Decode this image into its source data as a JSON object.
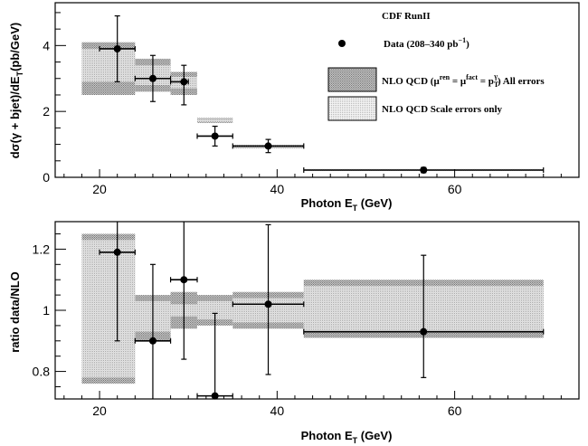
{
  "chart_data": [
    {
      "type": "scatter",
      "name": "cross-section",
      "xlabel": "Photon E",
      "xlabel_sub": "T",
      "xlabel_unit": " (GeV)",
      "ylabel": "dσ(γ + bjet)/dE",
      "ylabel_sub": "T",
      "ylabel_unit": "(pb/GeV)",
      "xlim": [
        15,
        74
      ],
      "ylim": [
        0,
        5.3
      ],
      "xticks": [
        20,
        40,
        60
      ],
      "yticks": [
        0,
        2,
        4
      ],
      "legend_title": "CDF RunII",
      "legend_placement": "top-right",
      "legend": {
        "data": "Data (208–340 pb",
        "data_sup": "−1",
        "data_end": ")",
        "nlo_all_pre": "NLO QCD (μ",
        "nlo_all_sup1": "ren",
        "nlo_all_mid1": " = μ",
        "nlo_all_sup2": "fact",
        "nlo_all_mid2": " = p",
        "nlo_all_sub": "T",
        "nlo_all_sup3": "γ",
        "nlo_all_end": ") All errors",
        "nlo_scale": "NLO QCD Scale errors only"
      },
      "data_points": [
        {
          "x": 22,
          "xerr": [
            20,
            24
          ],
          "y": 3.9,
          "yerr": [
            2.9,
            4.9
          ]
        },
        {
          "x": 26,
          "xerr": [
            24,
            28
          ],
          "y": 3.0,
          "yerr": [
            2.3,
            3.7
          ]
        },
        {
          "x": 29.5,
          "xerr": [
            28,
            30
          ],
          "y": 2.9,
          "yerr": [
            2.2,
            3.4
          ]
        },
        {
          "x": 33,
          "xerr": [
            31,
            35
          ],
          "y": 1.25,
          "yerr": [
            0.95,
            1.55
          ]
        },
        {
          "x": 39,
          "xerr": [
            35,
            43
          ],
          "y": 0.95,
          "yerr": [
            0.75,
            1.15
          ]
        },
        {
          "x": 56.5,
          "xerr": [
            43,
            70
          ],
          "y": 0.22,
          "yerr": [
            0.14,
            0.3
          ]
        }
      ],
      "nlo_all_errors": [
        {
          "x0": 18,
          "x1": 24,
          "y0": 2.5,
          "y1": 4.1
        },
        {
          "x0": 24,
          "x1": 28,
          "y0": 2.6,
          "y1": 3.6
        },
        {
          "x0": 28,
          "x1": 31,
          "y0": 2.5,
          "y1": 3.2
        },
        {
          "x0": 31,
          "x1": 35,
          "y0": 1.65,
          "y1": 1.8
        },
        {
          "x0": 35,
          "x1": 43,
          "y0": 0.88,
          "y1": 0.98
        },
        {
          "x0": 43,
          "x1": 70,
          "y0": 0.2,
          "y1": 0.25
        }
      ],
      "nlo_scale_errors": [
        {
          "x0": 18,
          "x1": 24,
          "y0": 2.9,
          "y1": 3.9
        },
        {
          "x0": 24,
          "x1": 28,
          "y0": 2.8,
          "y1": 3.4
        },
        {
          "x0": 28,
          "x1": 31,
          "y0": 2.7,
          "y1": 3.05
        },
        {
          "x0": 31,
          "x1": 35,
          "y0": 1.68,
          "y1": 1.77
        },
        {
          "x0": 35,
          "x1": 43,
          "y0": 0.9,
          "y1": 0.96
        },
        {
          "x0": 43,
          "x1": 70,
          "y0": 0.21,
          "y1": 0.24
        }
      ]
    },
    {
      "type": "scatter",
      "name": "ratio",
      "xlabel": "Photon E",
      "xlabel_sub": "T",
      "xlabel_unit": " (GeV)",
      "ylabel": "ratio data/NLO",
      "xlim": [
        15,
        74
      ],
      "ylim": [
        0.71,
        1.29
      ],
      "xticks": [
        20,
        40,
        60
      ],
      "yticks": [
        0.8,
        1,
        1.2
      ],
      "yticklabels": [
        "0.8",
        "1",
        "1.2"
      ],
      "data_points": [
        {
          "x": 22,
          "xerr": [
            20,
            24
          ],
          "y": 1.19,
          "yerr": [
            0.9,
            1.29
          ]
        },
        {
          "x": 26,
          "xerr": [
            24,
            28
          ],
          "y": 0.9,
          "yerr": [
            0.71,
            1.15
          ]
        },
        {
          "x": 29.5,
          "xerr": [
            28,
            31
          ],
          "y": 1.1,
          "yerr": [
            0.84,
            1.29
          ]
        },
        {
          "x": 33,
          "xerr": [
            31,
            35
          ],
          "y": 0.72,
          "yerr": [
            0.71,
            0.99
          ]
        },
        {
          "x": 39,
          "xerr": [
            35,
            43
          ],
          "y": 1.02,
          "yerr": [
            0.79,
            1.28
          ]
        },
        {
          "x": 56.5,
          "xerr": [
            43,
            70
          ],
          "y": 0.93,
          "yerr": [
            0.78,
            1.18
          ]
        }
      ],
      "nlo_all_errors": [
        {
          "x0": 18,
          "x1": 24,
          "y0": 0.76,
          "y1": 1.25
        },
        {
          "x0": 24,
          "x1": 28,
          "y0": 0.9,
          "y1": 1.05
        },
        {
          "x0": 28,
          "x1": 31,
          "y0": 0.94,
          "y1": 1.06
        },
        {
          "x0": 31,
          "x1": 35,
          "y0": 0.95,
          "y1": 1.05
        },
        {
          "x0": 35,
          "x1": 43,
          "y0": 0.94,
          "y1": 1.06
        },
        {
          "x0": 43,
          "x1": 70,
          "y0": 0.91,
          "y1": 1.1
        }
      ],
      "nlo_scale_errors": [
        {
          "x0": 18,
          "x1": 24,
          "y0": 0.78,
          "y1": 1.23
        },
        {
          "x0": 24,
          "x1": 28,
          "y0": 0.93,
          "y1": 1.03
        },
        {
          "x0": 28,
          "x1": 31,
          "y0": 0.98,
          "y1": 1.02
        },
        {
          "x0": 31,
          "x1": 35,
          "y0": 0.97,
          "y1": 1.03
        },
        {
          "x0": 35,
          "x1": 43,
          "y0": 0.96,
          "y1": 1.04
        },
        {
          "x0": 43,
          "x1": 70,
          "y0": 0.93,
          "y1": 1.08
        }
      ]
    }
  ]
}
